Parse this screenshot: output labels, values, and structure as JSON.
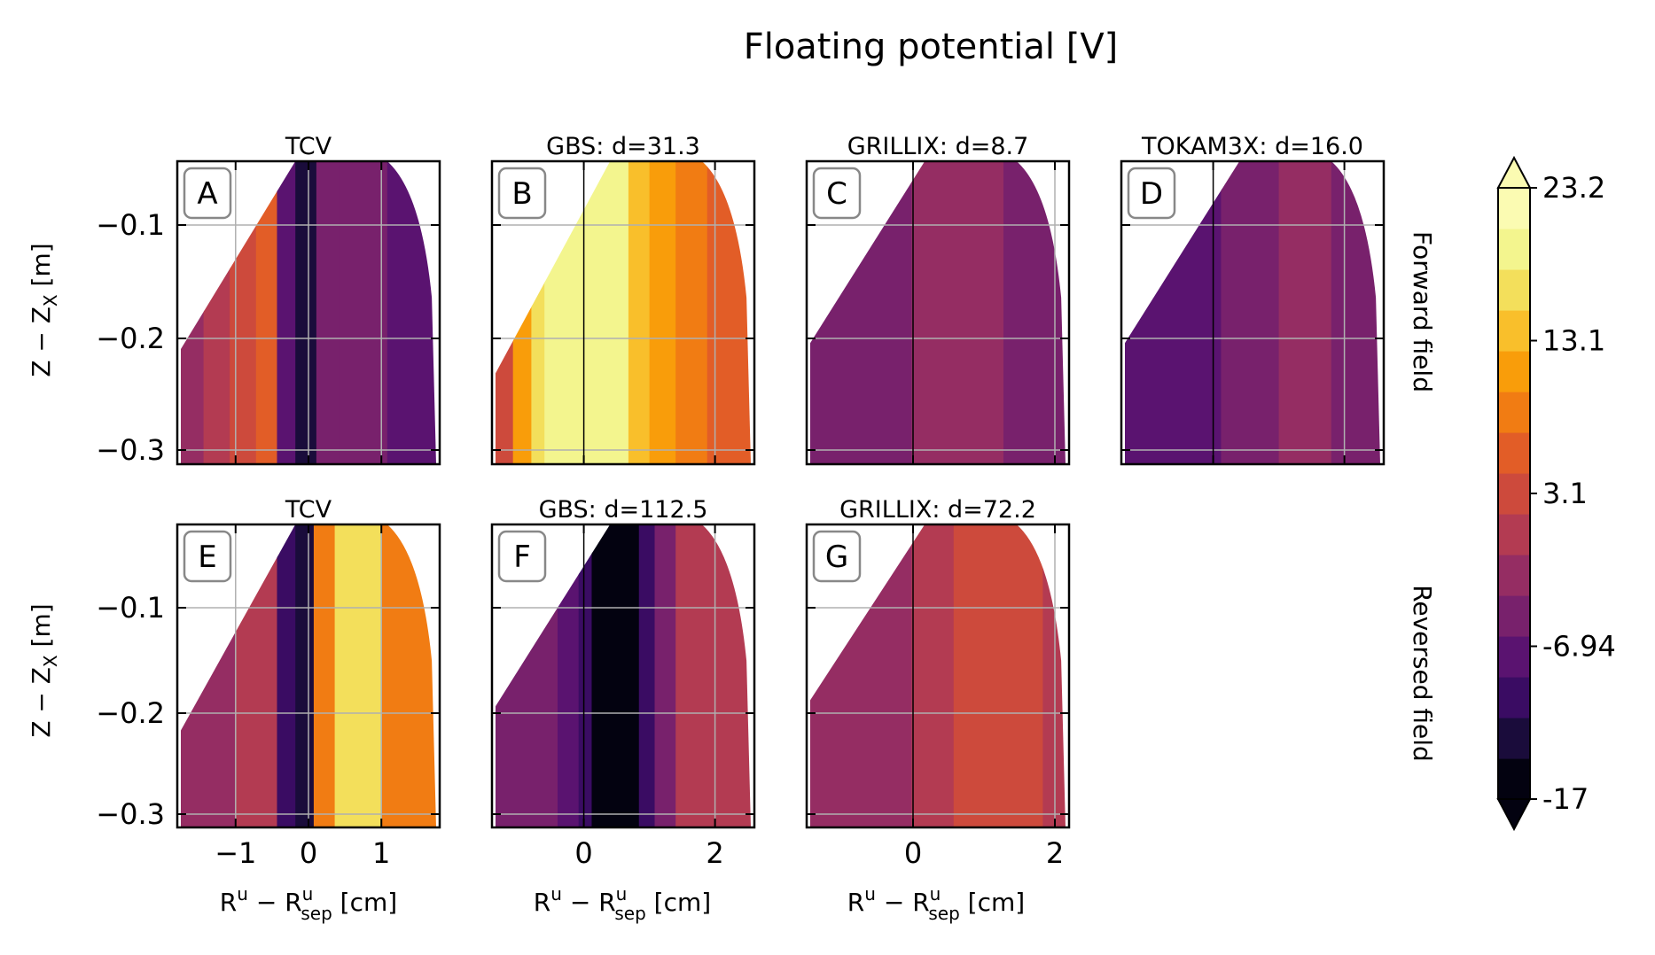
{
  "figure": {
    "title": "Floating potential [V]",
    "row_labels": [
      "Forward field",
      "Reversed field"
    ],
    "ylabel": "Z − Z",
    "ylabel_sub": "X",
    "ylabel_unit": " [m]",
    "xlabel": "R",
    "xlabel_sup": "u",
    "xlabel_mid": " − R",
    "xlabel_sup2": "u",
    "xlabel_sub": "sep",
    "xlabel_unit": " [cm]",
    "colorbar_ticks": [
      "23.2",
      "13.1",
      "3.1",
      "-6.94",
      "-17"
    ],
    "colors": {
      "level_colors": [
        "#030210",
        "#1a0c3b",
        "#3a0c63",
        "#5a1370",
        "#78216c",
        "#952d63",
        "#b33b52",
        "#cd4a3c",
        "#e25d27",
        "#f17c13",
        "#f99d0a",
        "#f9bf2b",
        "#f3df5b",
        "#f3f58e",
        "#fbfbb2"
      ]
    }
  },
  "chart_data": [
    {
      "panel": "A",
      "title": "TCV",
      "type": "heatmap",
      "row": "Forward field",
      "xlim": [
        -1.8,
        1.8
      ],
      "ylim": [
        -0.315,
        -0.055
      ],
      "xticks": [
        "-1",
        "0",
        "1"
      ],
      "yticks": [
        "−0.1",
        "−0.2",
        "−0.3"
      ],
      "colorbar_range": [
        -17,
        23.2
      ]
    },
    {
      "panel": "B",
      "title": "GBS: d=31.3",
      "type": "heatmap",
      "row": "Forward field",
      "xlim": [
        -1.4,
        2.6
      ],
      "ylim": [
        -0.315,
        -0.055
      ],
      "xticks": [
        "0",
        "2"
      ],
      "metric_d": 31.3
    },
    {
      "panel": "C",
      "title": "GRILLIX: d=8.7",
      "type": "heatmap",
      "row": "Forward field",
      "xlim": [
        -1.5,
        2.2
      ],
      "ylim": [
        -0.315,
        -0.055
      ],
      "xticks": [
        "0",
        "2"
      ],
      "metric_d": 8.7
    },
    {
      "panel": "D",
      "title": "TOKAM3X: d=16.0",
      "type": "heatmap",
      "row": "Forward field",
      "xlim": [
        -1.4,
        2.6
      ],
      "ylim": [
        -0.315,
        -0.055
      ],
      "xticks": [
        "0",
        "2"
      ],
      "metric_d": 16.0
    },
    {
      "panel": "E",
      "title": "TCV",
      "type": "heatmap",
      "row": "Reversed field",
      "xlim": [
        -1.8,
        1.8
      ],
      "ylim": [
        -0.32,
        -0.02
      ],
      "xticks": [
        "−1",
        "0",
        "1"
      ],
      "yticks": [
        "−0.1",
        "−0.2",
        "−0.3"
      ]
    },
    {
      "panel": "F",
      "title": "GBS: d=112.5",
      "type": "heatmap",
      "row": "Reversed field",
      "xlim": [
        -1.4,
        2.6
      ],
      "ylim": [
        -0.32,
        -0.02
      ],
      "xticks": [
        "0",
        "2"
      ],
      "metric_d": 112.5
    },
    {
      "panel": "G",
      "title": "GRILLIX: d=72.2",
      "type": "heatmap",
      "row": "Reversed field",
      "xlim": [
        -1.5,
        2.2
      ],
      "ylim": [
        -0.32,
        -0.02
      ],
      "xticks": [
        "0",
        "2"
      ],
      "metric_d": 72.2
    }
  ]
}
